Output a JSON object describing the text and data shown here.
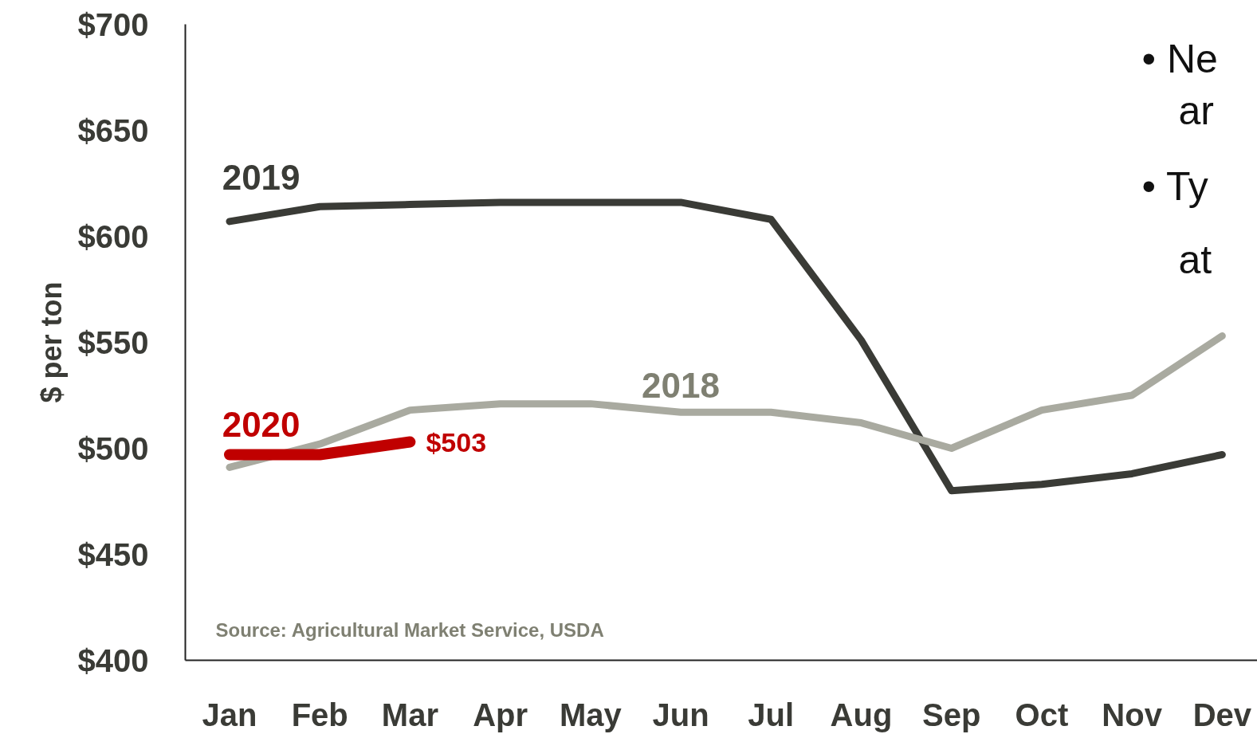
{
  "chart_data": {
    "type": "line",
    "ylabel": "$ per ton",
    "categories": [
      "Jan",
      "Feb",
      "Mar",
      "Apr",
      "May",
      "Jun",
      "Jul",
      "Aug",
      "Sep",
      "Oct",
      "Nov",
      "Dev"
    ],
    "series": [
      {
        "name": "2019",
        "color": "#3a3b36",
        "values": [
          607,
          614,
          615,
          616,
          616,
          616,
          608,
          551,
          480,
          483,
          488,
          497
        ]
      },
      {
        "name": "2018",
        "color": "#a9aaa0",
        "values": [
          491,
          502,
          518,
          521,
          521,
          517,
          517,
          512,
          500,
          518,
          525,
          553
        ]
      },
      {
        "name": "2020",
        "color": "#c00000",
        "values": [
          497,
          497,
          503,
          null,
          null,
          null,
          null,
          null,
          null,
          null,
          null,
          null
        ],
        "value_labels": [
          null,
          null,
          "$503",
          null,
          null,
          null,
          null,
          null,
          null,
          null,
          null,
          null
        ]
      }
    ],
    "ylim": [
      400,
      700
    ],
    "yticks": [
      {
        "value": 400,
        "label": "$400"
      },
      {
        "value": 450,
        "label": "$450"
      },
      {
        "value": 500,
        "label": "$500"
      },
      {
        "value": 550,
        "label": "$550"
      },
      {
        "value": 600,
        "label": "$600"
      },
      {
        "value": 650,
        "label": "$650"
      },
      {
        "value": 700,
        "label": "$700"
      }
    ],
    "annotations": [
      "Source:  Agricultural Market Service, USDA",
      "• Ne",
      "ar",
      "• Ty",
      "at"
    ],
    "grid": false,
    "marker": "none",
    "line_style": "solid"
  }
}
